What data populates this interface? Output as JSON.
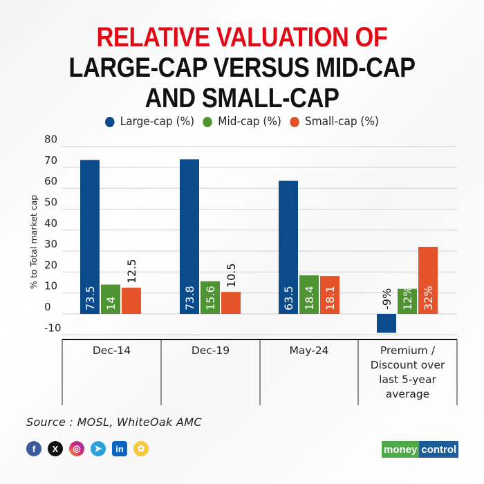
{
  "header": {
    "title_line1": "RELATIVE VALUATION OF",
    "title_line2": "LARGE-CAP VERSUS MID-CAP",
    "title_line3": "AND SMALL-CAP"
  },
  "colors": {
    "title_accent": "#e30a17",
    "large_cap": "#0b4a8b",
    "mid_cap": "#4f9433",
    "small_cap": "#e4532a"
  },
  "chart_data": {
    "type": "bar",
    "title": "RELATIVE VALUATION OF LARGE-CAP VERSUS MID-CAP AND SMALL-CAP",
    "xlabel": "",
    "ylabel": "% to Total market cap",
    "ylim": [
      -10,
      80
    ],
    "yticks": [
      -10,
      0,
      10,
      20,
      30,
      40,
      50,
      60,
      70,
      80
    ],
    "grid": true,
    "legend_position": "top-center",
    "categories": [
      "Dec-14",
      "Dec-19",
      "May-24",
      "Premium / Discount over last 5-year average"
    ],
    "category_lines": [
      [
        "Dec-14"
      ],
      [
        "Dec-19"
      ],
      [
        "May-24"
      ],
      [
        "Premium /",
        "Discount over",
        "last 5-year",
        "average"
      ]
    ],
    "series": [
      {
        "name": "Large-cap (%)",
        "color": "#0b4a8b",
        "values": [
          73.5,
          73.8,
          63.5,
          -9
        ],
        "labels": [
          "73.5",
          "73.8",
          "63.5",
          "-9%"
        ]
      },
      {
        "name": "Mid-cap (%)",
        "color": "#4f9433",
        "values": [
          14,
          15.6,
          18.4,
          12
        ],
        "labels": [
          "14",
          "15.6",
          "18.4",
          "12%"
        ]
      },
      {
        "name": "Small-cap (%)",
        "color": "#e4532a",
        "values": [
          12.5,
          10.5,
          18.1,
          32
        ],
        "labels": [
          "12.5",
          "10.5",
          "18.1",
          "32%"
        ]
      }
    ]
  },
  "footer": {
    "source": "Source : MOSL, WhiteOak AMC",
    "social_icons": [
      "facebook-icon",
      "x-icon",
      "instagram-icon",
      "telegram-icon",
      "linkedin-icon",
      "snapchat-icon"
    ],
    "brand_part1": "money",
    "brand_part2": "control"
  }
}
